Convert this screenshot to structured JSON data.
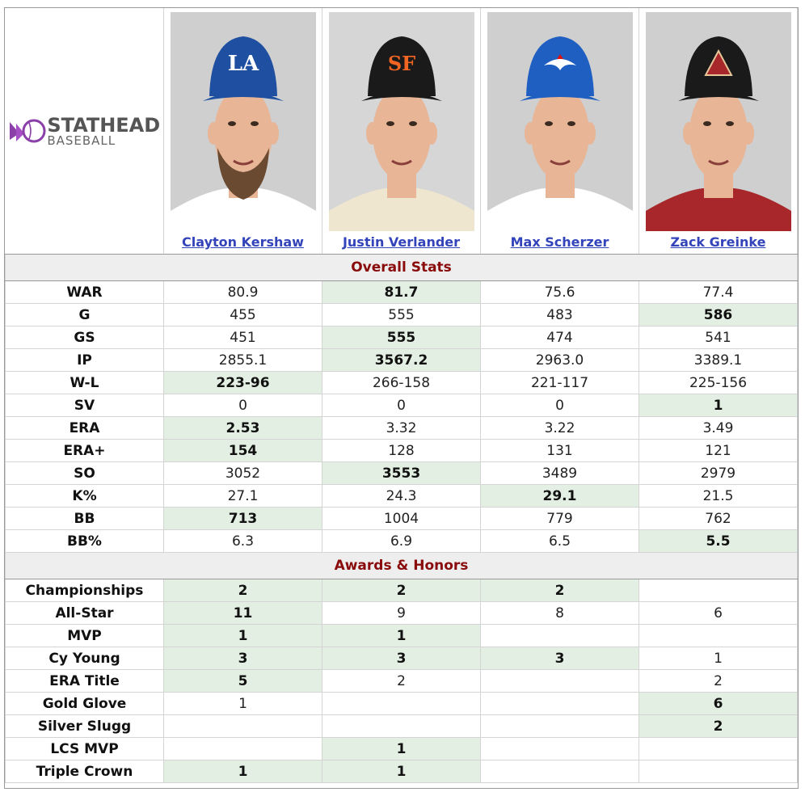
{
  "brand": {
    "main": "STATHEAD",
    "sub": "BASEBALL",
    "accent": "#8b3fa9"
  },
  "players": [
    {
      "name": "Clayton Kershaw",
      "cap": "#1f4fa0",
      "logo": "LA",
      "bg": "#cfcfcf",
      "jersey": "#ffffff",
      "beard": true
    },
    {
      "name": "Justin Verlander",
      "cap": "#1a1a1a",
      "logo": "SF",
      "bg": "#d6d6d6",
      "jersey": "#efe6cf",
      "beard": false
    },
    {
      "name": "Max Scherzer",
      "cap": "#1f5fc2",
      "logo": "TOR",
      "bg": "#cfcfcf",
      "jersey": "#ffffff",
      "beard": false
    },
    {
      "name": "Zack Greinke",
      "cap": "#1a1a1a",
      "logo": "A",
      "bg": "#cfcfcf",
      "jersey": "#a7272a",
      "beard": false
    }
  ],
  "sections": [
    {
      "title": "Overall Stats",
      "rows": [
        {
          "label": "WAR",
          "values": [
            "80.9",
            "81.7",
            "75.6",
            "77.4"
          ],
          "best": [
            1
          ]
        },
        {
          "label": "G",
          "values": [
            "455",
            "555",
            "483",
            "586"
          ],
          "best": [
            3
          ]
        },
        {
          "label": "GS",
          "values": [
            "451",
            "555",
            "474",
            "541"
          ],
          "best": [
            1
          ]
        },
        {
          "label": "IP",
          "values": [
            "2855.1",
            "3567.2",
            "2963.0",
            "3389.1"
          ],
          "best": [
            1
          ]
        },
        {
          "label": "W-L",
          "values": [
            "223-96",
            "266-158",
            "221-117",
            "225-156"
          ],
          "best": [
            0
          ]
        },
        {
          "label": "SV",
          "values": [
            "0",
            "0",
            "0",
            "1"
          ],
          "best": [
            3
          ]
        },
        {
          "label": "ERA",
          "values": [
            "2.53",
            "3.32",
            "3.22",
            "3.49"
          ],
          "best": [
            0
          ]
        },
        {
          "label": "ERA+",
          "values": [
            "154",
            "128",
            "131",
            "121"
          ],
          "best": [
            0
          ]
        },
        {
          "label": "SO",
          "values": [
            "3052",
            "3553",
            "3489",
            "2979"
          ],
          "best": [
            1
          ]
        },
        {
          "label": "K%",
          "values": [
            "27.1",
            "24.3",
            "29.1",
            "21.5"
          ],
          "best": [
            2
          ]
        },
        {
          "label": "BB",
          "values": [
            "713",
            "1004",
            "779",
            "762"
          ],
          "best": [
            0
          ]
        },
        {
          "label": "BB%",
          "values": [
            "6.3",
            "6.9",
            "6.5",
            "5.5"
          ],
          "best": [
            3
          ]
        }
      ]
    },
    {
      "title": "Awards & Honors",
      "rows": [
        {
          "label": "Championships",
          "values": [
            "2",
            "2",
            "2",
            ""
          ],
          "best": [
            0,
            1,
            2
          ]
        },
        {
          "label": "All-Star",
          "values": [
            "11",
            "9",
            "8",
            "6"
          ],
          "best": [
            0
          ]
        },
        {
          "label": "MVP",
          "values": [
            "1",
            "1",
            "",
            ""
          ],
          "best": [
            0,
            1
          ]
        },
        {
          "label": "Cy Young",
          "values": [
            "3",
            "3",
            "3",
            "1"
          ],
          "best": [
            0,
            1,
            2
          ]
        },
        {
          "label": "ERA Title",
          "values": [
            "5",
            "2",
            "",
            "2"
          ],
          "best": [
            0
          ]
        },
        {
          "label": "Gold Glove",
          "values": [
            "1",
            "",
            "",
            "6"
          ],
          "best": [
            3
          ]
        },
        {
          "label": "Silver Slugg",
          "values": [
            "",
            "",
            "",
            "2"
          ],
          "best": [
            3
          ]
        },
        {
          "label": "LCS MVP",
          "values": [
            "",
            "1",
            "",
            ""
          ],
          "best": [
            1
          ]
        },
        {
          "label": "Triple Crown",
          "values": [
            "1",
            "1",
            "",
            ""
          ],
          "best": [
            0,
            1
          ]
        }
      ]
    }
  ]
}
